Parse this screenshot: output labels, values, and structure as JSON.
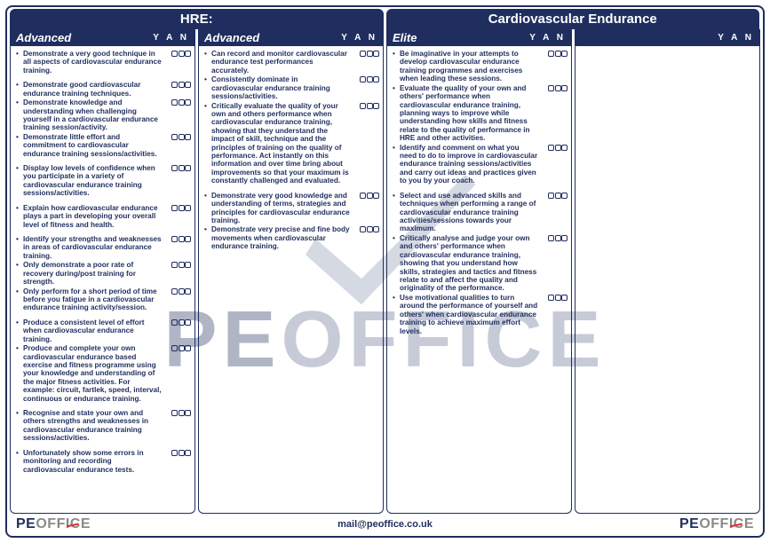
{
  "colors": {
    "brand_navy": "#1f2e5f",
    "brand_grey": "#8a8a8a",
    "brand_red": "#de2b2b",
    "watermark_fill": "#6b7a9c",
    "background": "#ffffff"
  },
  "header": {
    "left": "HRE:",
    "right": "Cardiovascular Endurance"
  },
  "yan_label": "Y A N",
  "columns": [
    {
      "title": "Advanced",
      "groups": [
        [
          "Demonstrate a very good technique in all aspects of cardiovascular endurance training."
        ],
        [
          "Demonstrate good cardiovascular endurance training techniques.",
          "Demonstrate knowledge and understanding when challenging yourself in a cardiovascular endurance training session/activity.",
          "Demonstrate little effort and commitment to cardiovascular endurance training sessions/activities."
        ],
        [
          "Display low levels of confidence when you participate in a variety of cardiovascular endurance training sessions/activities."
        ],
        [
          "Explain how cardiovascular endurance plays a part in developing your overall level of fitness and health."
        ],
        [
          "Identify your strengths and weaknesses in areas of cardiovascular endurance training.",
          "Only demonstrate a poor rate of recovery during/post training for strength.",
          "Only perform for a short period of time before you fatigue in a cardiovascular endurance training activity/session."
        ],
        [
          "Produce a consistent level of effort when cardiovascular endurance training.",
          "Produce and complete your own cardiovascular endurance based exercise and fitness programme using your knowledge and understanding of the major fitness activities. For example: circuit, fartlek, speed, interval, continuous or endurance training."
        ],
        [
          "Recognise and state your own and others strengths and weaknesses in cardiovascular endurance training sessions/activities."
        ],
        [
          "Unfortunately show some errors in monitoring and recording cardiovascular endurance tests."
        ]
      ]
    },
    {
      "title": "Advanced",
      "groups": [
        [
          "Can record and monitor cardiovascular endurance test performances accurately.",
          "Consistently dominate in cardiovascular endurance training sessions/activities.",
          "Critically evaluate the quality of your own and others performance when cardiovascular endurance training, showing that they understand the impact of skill, technique and the principles of training on the quality of performance. Act instantly on this information and over time bring about improvements so that your maximum is constantly challenged and evaluated."
        ],
        [
          "Demonstrate very good knowledge and understanding of terms, strategies and principles for cardiovascular endurance training.",
          "Demonstrate very precise and fine body movements when cardiovascular endurance training."
        ]
      ]
    },
    {
      "title": "Elite",
      "groups": [
        [
          "Be imaginative in your attempts to develop cardiovascular endurance training programmes and exercises when leading these sessions.",
          "Evaluate the quality of your own and others' performance when cardiovascular endurance training, planning ways to improve while understanding how skills and fitness relate to the quality of performance in HRE and other activities.",
          "Identify and comment on what you need to do to improve in cardiovascular endurance training sessions/activities and carry out ideas and practices given to you by your coach."
        ],
        [
          "Select and use advanced skills and techniques when performing a range of cardiovascular endurance training activities/sessions towards your maximum.",
          "Critically analyse and judge your own and others' performance when cardiovascular endurance training, showing that you understand how skills, strategies and tactics and fitness relate to and affect the quality and originality of the performance.",
          "Use motivational qualities to turn around the performance of yourself and others' when cardiovascular endurance training to achieve maximum effort levels."
        ]
      ]
    },
    {
      "title": "",
      "empty_rows": 20
    }
  ],
  "footer": {
    "logo_pe": "PE",
    "logo_off": "OFF",
    "logo_ice": "ICE",
    "email": "mail@peoffice.co.uk"
  },
  "watermark": {
    "pe": "PE",
    "office": "OFFICE"
  }
}
